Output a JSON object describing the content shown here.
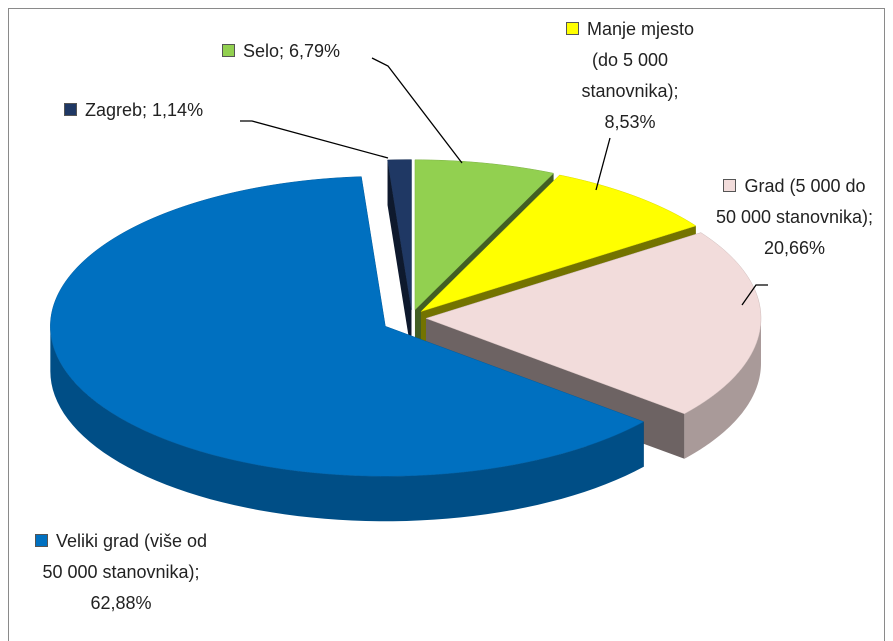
{
  "chart_data": {
    "type": "pie3d",
    "values": [
      6.79,
      8.53,
      20.66,
      62.88,
      1.14
    ],
    "value_labels": [
      "Selo; 6,79%",
      "Manje mjesto (do 5 000 stanovnika); 8,53%",
      "Grad (5 000 do 50 000 stanovnika); 20,66%",
      "Veliki grad (više od 50 000 stanovnika); 62,88%",
      "Zagreb; 1,14%"
    ],
    "colors": [
      "#92d050",
      "#ffff00",
      "#f2dcdb",
      "#0070c0",
      "#1f3864"
    ]
  }
}
